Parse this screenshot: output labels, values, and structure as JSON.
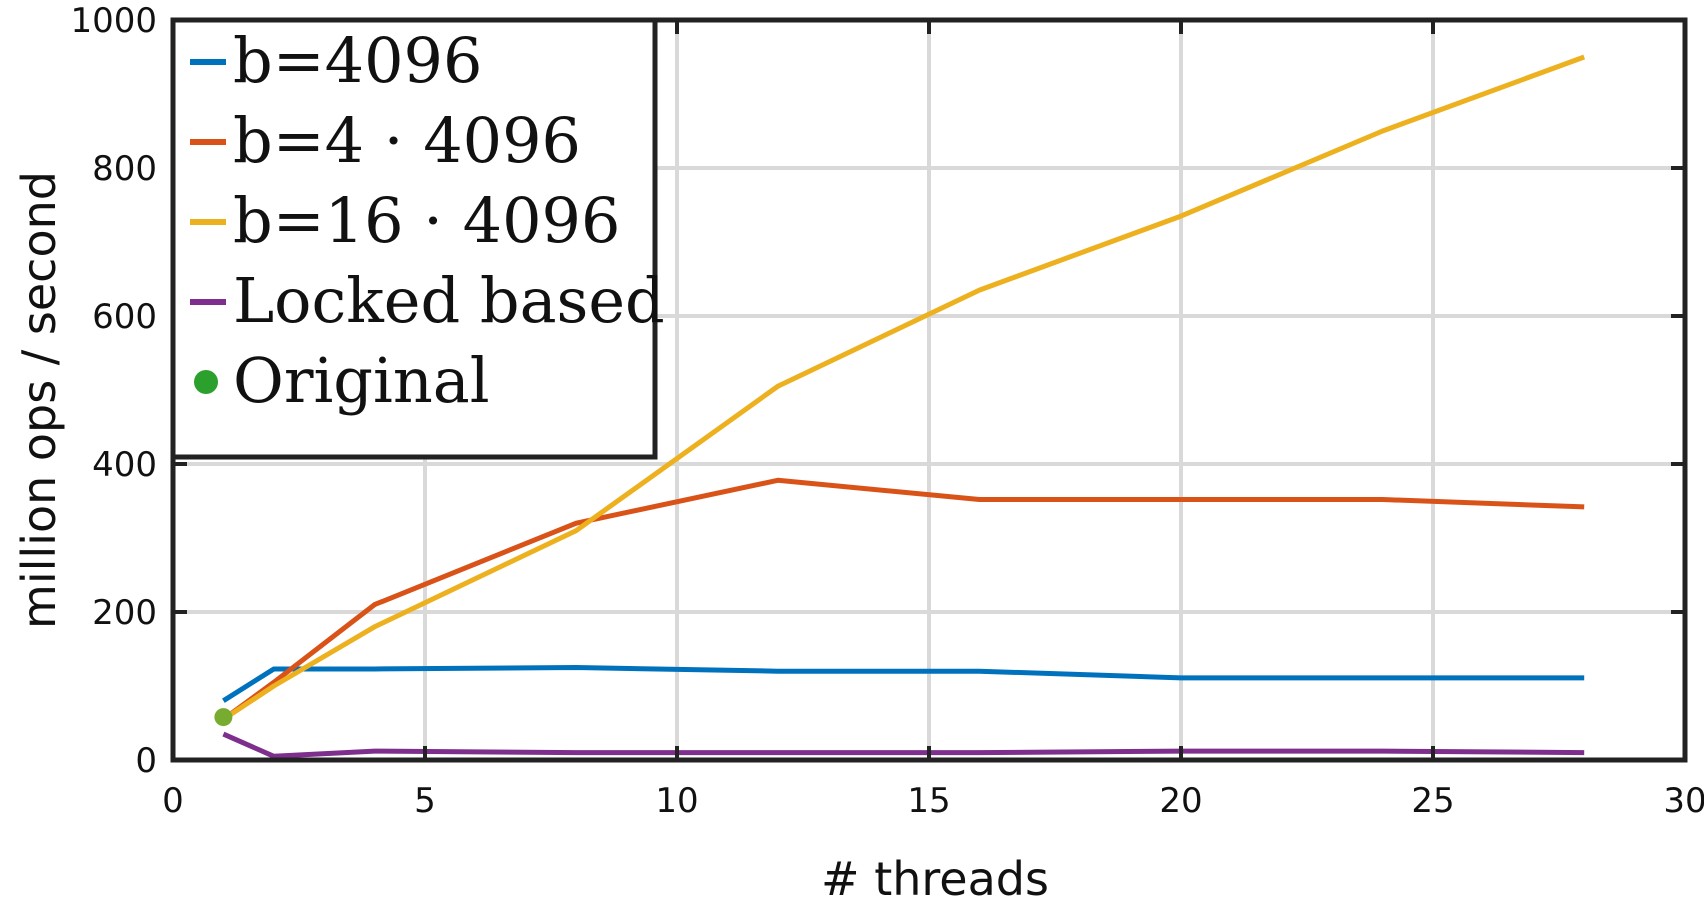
{
  "chart_data": {
    "type": "line",
    "xlabel": "# threads",
    "ylabel": "million ops / second",
    "xlim": [
      0,
      30
    ],
    "ylim": [
      0,
      1000
    ],
    "xticks": [
      "0",
      "5",
      "10",
      "15",
      "20",
      "25",
      "30"
    ],
    "yticks": [
      "0",
      "200",
      "400",
      "600",
      "800",
      "1000"
    ],
    "grid": true,
    "legend_position": "top-left",
    "series": [
      {
        "name": "b=4096",
        "color": "#0072BD",
        "x": [
          1,
          2,
          4,
          8,
          12,
          16,
          20,
          24,
          28
        ],
        "y": [
          80,
          123,
          123,
          125,
          120,
          120,
          111,
          111,
          111
        ]
      },
      {
        "name": "b=4 · 4096",
        "color": "#D95319",
        "x": [
          1,
          2,
          4,
          8,
          12,
          16,
          20,
          24,
          28
        ],
        "y": [
          55,
          105,
          210,
          320,
          378,
          352,
          352,
          352,
          342
        ]
      },
      {
        "name": "b=16 · 4096",
        "color": "#EDB120",
        "x": [
          1,
          2,
          4,
          8,
          12,
          16,
          20,
          24,
          28
        ],
        "y": [
          55,
          100,
          180,
          310,
          505,
          635,
          735,
          850,
          950
        ]
      },
      {
        "name": "Locked based",
        "color": "#7E2F8E",
        "x": [
          1,
          2,
          4,
          8,
          12,
          16,
          20,
          24,
          28
        ],
        "y": [
          35,
          5,
          12,
          10,
          10,
          10,
          12,
          12,
          10
        ]
      }
    ],
    "points": [
      {
        "name": "Original",
        "color": "#77AC30",
        "legend_color": "#2CA02C",
        "x": 1,
        "y": 58
      }
    ]
  }
}
